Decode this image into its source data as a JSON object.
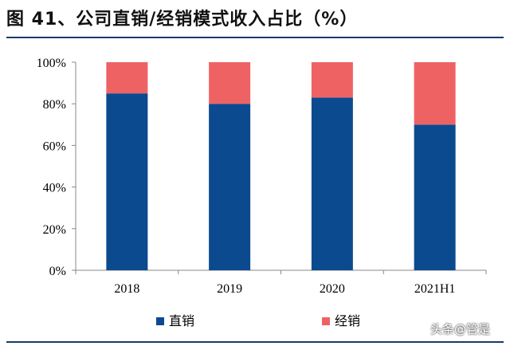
{
  "title": "图 41、公司直销/经销模式收入占比（%）",
  "watermark": "头条@管是",
  "colors": {
    "direct": "#0b4a8f",
    "distributor": "#ef6264",
    "axis": "#888888"
  },
  "chart_data": {
    "type": "bar",
    "stacked": true,
    "categories": [
      "2018",
      "2019",
      "2020",
      "2021H1"
    ],
    "series": [
      {
        "name": "直销",
        "values": [
          85,
          80,
          83,
          70
        ]
      },
      {
        "name": "经销",
        "values": [
          15,
          20,
          17,
          30
        ]
      }
    ],
    "ylim": [
      0,
      100
    ],
    "yticks": [
      "0%",
      "20%",
      "40%",
      "60%",
      "80%",
      "100%"
    ],
    "legend_position": "bottom",
    "grid": false
  }
}
